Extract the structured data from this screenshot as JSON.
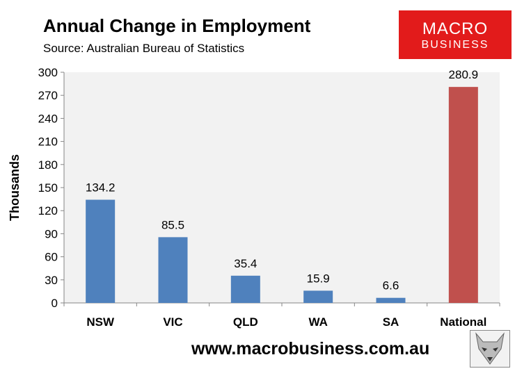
{
  "header": {
    "title": "Annual Change in Employment",
    "subtitle": "Source: Australian Bureau of Statistics"
  },
  "logo": {
    "line1": "MACRO",
    "line2": "BUSINESS",
    "color": "#e21b1b"
  },
  "footer": {
    "website": "www.macrobusiness.com.au"
  },
  "chart_data": {
    "type": "bar",
    "title": "Annual Change in Employment",
    "subtitle": "Source: Australian Bureau of Statistics",
    "xlabel": "",
    "ylabel": "Thousands",
    "categories": [
      "NSW",
      "VIC",
      "QLD",
      "WA",
      "SA",
      "National"
    ],
    "values": [
      134.2,
      85.5,
      35.4,
      15.9,
      6.6,
      280.9
    ],
    "data_labels": [
      "134.2",
      "85.5",
      "35.4",
      "15.9",
      "6.6",
      "280.9"
    ],
    "ylim": [
      0,
      300
    ],
    "yticks": [
      0,
      30,
      60,
      90,
      120,
      150,
      180,
      210,
      240,
      270,
      300
    ],
    "bar_colors": [
      "#4f81bd",
      "#4f81bd",
      "#4f81bd",
      "#4f81bd",
      "#4f81bd",
      "#c0504d"
    ],
    "plot_background": "#f2f2f2",
    "grid": false,
    "legend": "none"
  }
}
